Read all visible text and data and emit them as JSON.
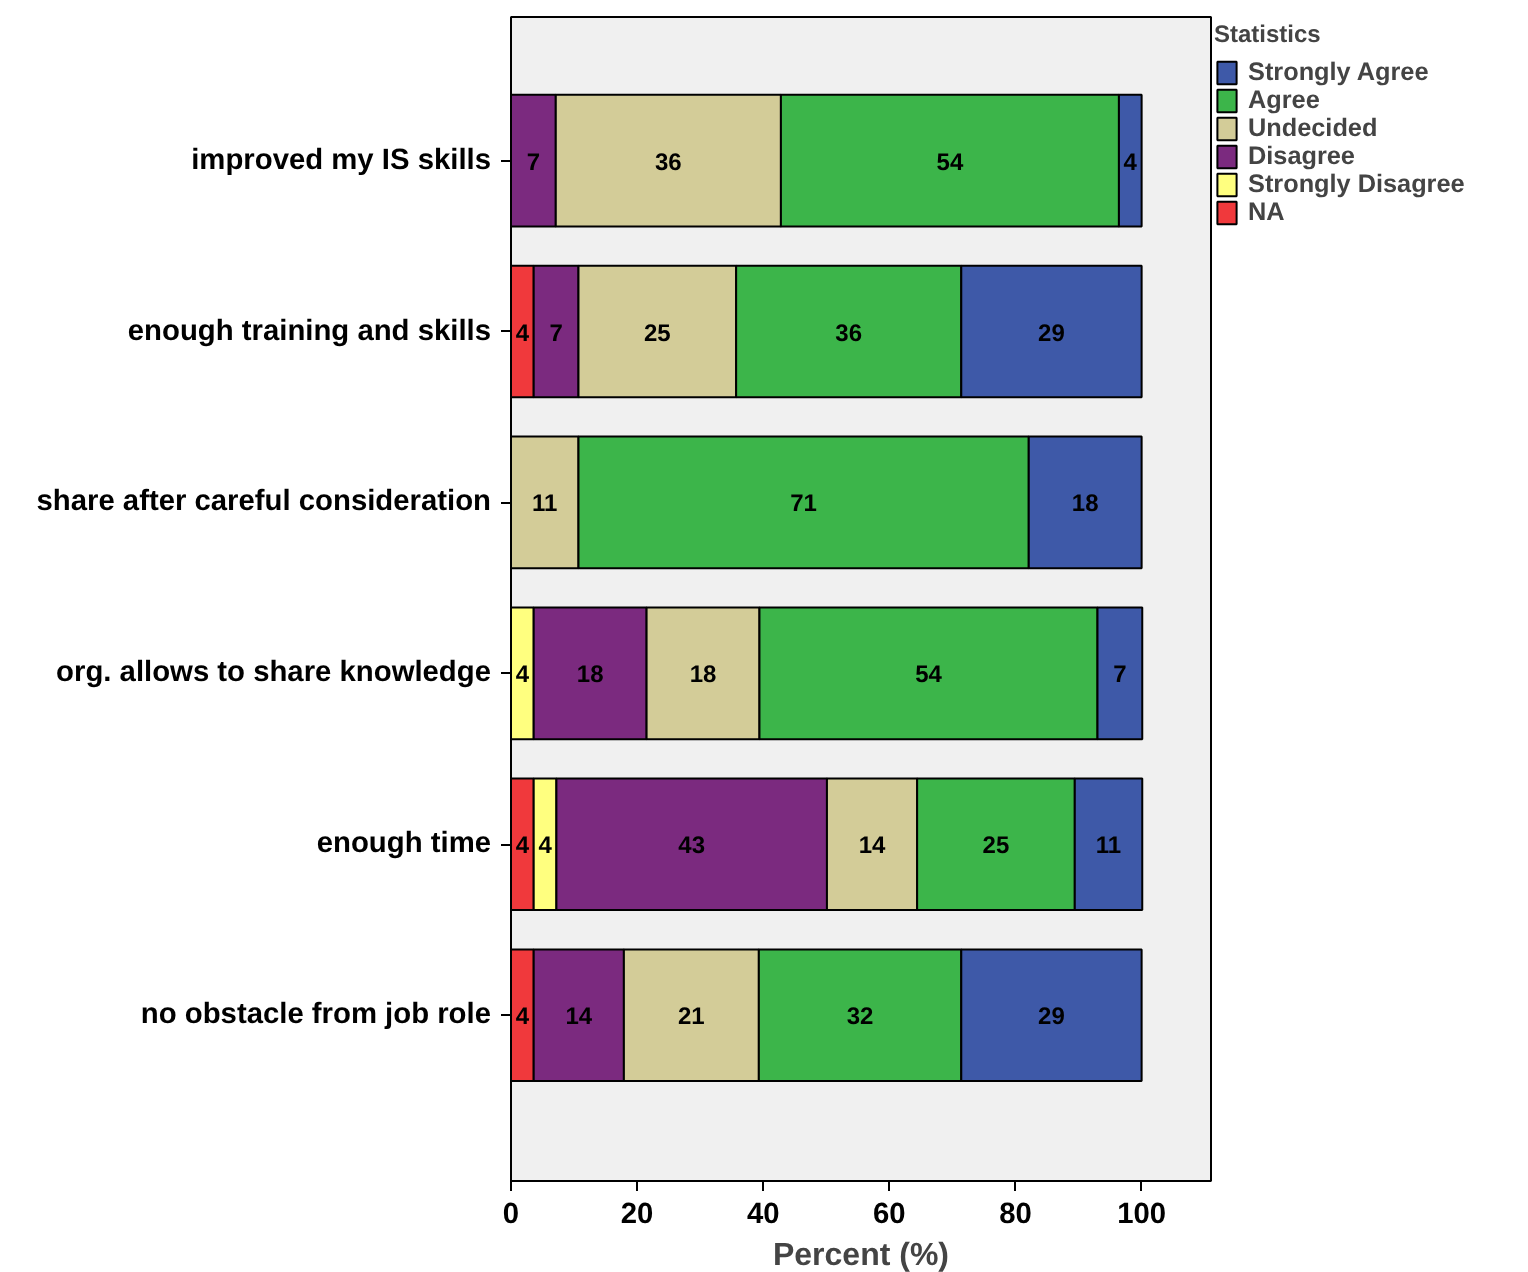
{
  "chart_data": {
    "type": "bar",
    "orientation": "horizontal",
    "stacked": true,
    "xlabel": "Percent (%)",
    "legend_title": "Statistics",
    "legend": "top right",
    "categories": [
      "improved my IS skills",
      "enough training and skills",
      "share after careful consideration",
      "org. allows to share knowledge",
      "enough time",
      "no obstacle from job role"
    ],
    "xlim": [
      0,
      111
    ],
    "xticks": [
      0,
      20,
      40,
      60,
      80,
      100
    ],
    "series": [
      {
        "name": "NA",
        "color": "#f0393c",
        "values": [
          null,
          3.6,
          null,
          null,
          3.6,
          3.6
        ],
        "value_labels": [
          null,
          "4",
          null,
          null,
          "4",
          "4"
        ]
      },
      {
        "name": "Strongly Disagree",
        "color": "#ffff7f",
        "values": [
          null,
          null,
          null,
          3.6,
          3.6,
          null
        ],
        "value_labels": [
          null,
          null,
          null,
          "4",
          "4",
          null
        ]
      },
      {
        "name": "Disagree",
        "color": "#7b2a7f",
        "values": [
          7.1,
          7.1,
          null,
          17.9,
          42.9,
          14.3
        ],
        "value_labels": [
          "7",
          "7",
          null,
          "18",
          "43",
          "14"
        ]
      },
      {
        "name": "Undecided",
        "color": "#d3cc98",
        "values": [
          35.7,
          25,
          10.7,
          17.9,
          14.3,
          21.4
        ],
        "value_labels": [
          "36",
          "25",
          "11",
          "18",
          "14",
          "21"
        ]
      },
      {
        "name": "Agree",
        "color": "#3cb54a",
        "values": [
          53.6,
          35.7,
          71.4,
          53.6,
          25,
          32.1
        ],
        "value_labels": [
          "54",
          "36",
          "71",
          "54",
          "25",
          "32"
        ]
      },
      {
        "name": "Strongly Agree",
        "color": "#3e59a8",
        "values": [
          3.6,
          28.6,
          17.9,
          7.1,
          10.7,
          28.6
        ],
        "value_labels": [
          "4",
          "29",
          "18",
          "7",
          "11",
          "29"
        ]
      }
    ]
  }
}
